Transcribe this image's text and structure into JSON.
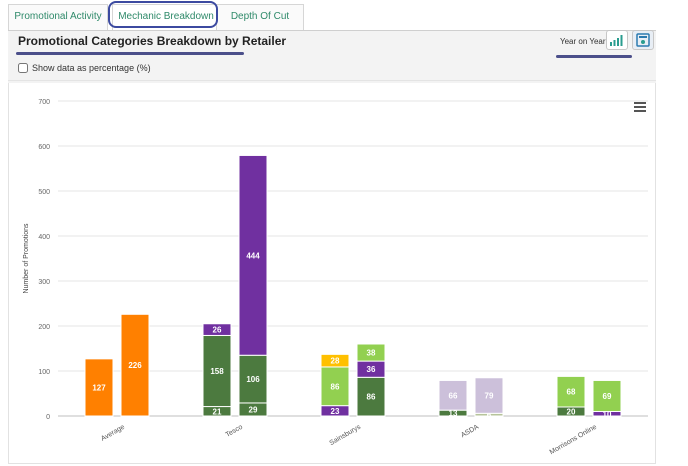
{
  "tabs": [
    {
      "label": "Promotional Activity"
    },
    {
      "label": "Mechanic Breakdown"
    },
    {
      "label": "Depth Of Cut"
    }
  ],
  "header": {
    "title": "Promotional Categories Breakdown by Retailer",
    "yoy_label": "Year on Year",
    "show_percentage_label": "Show data as percentage (%)"
  },
  "colors": {
    "orange": "#ff8000",
    "dark_green": "#4c7a3f",
    "purple": "#7030a0",
    "light_green": "#92d050",
    "yellow": "#ffc000",
    "lilac": "#ccc0da",
    "grey_green": "#b7c49b"
  },
  "chart_data": {
    "type": "bar",
    "stacked": true,
    "ylabel": "Number of Promotions",
    "ylim": [
      0,
      700
    ],
    "yticks": [
      0,
      100,
      200,
      300,
      400,
      500,
      600,
      700
    ],
    "grid": true,
    "categories": [
      "Average",
      "Tesco",
      "Sainsburys",
      "ASDA",
      "Morrisons Online"
    ],
    "bars": [
      {
        "category": "Average",
        "segments": [
          {
            "value": 127,
            "color": "orange",
            "label": "127"
          }
        ]
      },
      {
        "category": "Average",
        "segments": [
          {
            "value": 226,
            "color": "orange",
            "label": "226"
          }
        ]
      },
      {
        "category": "Tesco",
        "segments": [
          {
            "value": 21,
            "color": "dark_green",
            "label": "21"
          },
          {
            "value": 158,
            "color": "dark_green",
            "label": "158"
          },
          {
            "value": 26,
            "color": "purple",
            "label": "26"
          }
        ]
      },
      {
        "category": "Tesco",
        "segments": [
          {
            "value": 29,
            "color": "dark_green",
            "label": "29"
          },
          {
            "value": 106,
            "color": "dark_green",
            "label": "106"
          },
          {
            "value": 444,
            "color": "purple",
            "label": "444"
          }
        ]
      },
      {
        "category": "Sainsburys",
        "segments": [
          {
            "value": 23,
            "color": "purple",
            "label": "23"
          },
          {
            "value": 86,
            "color": "light_green",
            "label": "86"
          },
          {
            "value": 28,
            "color": "yellow",
            "label": "28"
          }
        ]
      },
      {
        "category": "Sainsburys",
        "segments": [
          {
            "value": 86,
            "color": "dark_green",
            "label": "86"
          },
          {
            "value": 36,
            "color": "purple",
            "label": "36"
          },
          {
            "value": 38,
            "color": "light_green",
            "label": "38"
          }
        ]
      },
      {
        "category": "ASDA",
        "segments": [
          {
            "value": 13,
            "color": "dark_green",
            "label": "13"
          },
          {
            "value": 66,
            "color": "lilac",
            "label": "66"
          }
        ]
      },
      {
        "category": "ASDA",
        "segments": [
          {
            "value": 6,
            "color": "grey_green",
            "label": "6"
          },
          {
            "value": 79,
            "color": "lilac",
            "label": "79"
          }
        ]
      },
      {
        "category": "Morrisons Online",
        "segments": [
          {
            "value": 20,
            "color": "dark_green",
            "label": "20"
          },
          {
            "value": 68,
            "color": "light_green",
            "label": "68"
          }
        ]
      },
      {
        "category": "Morrisons Online",
        "segments": [
          {
            "value": 10,
            "color": "purple",
            "label": "10"
          },
          {
            "value": 69,
            "color": "light_green",
            "label": "69"
          }
        ]
      }
    ]
  }
}
